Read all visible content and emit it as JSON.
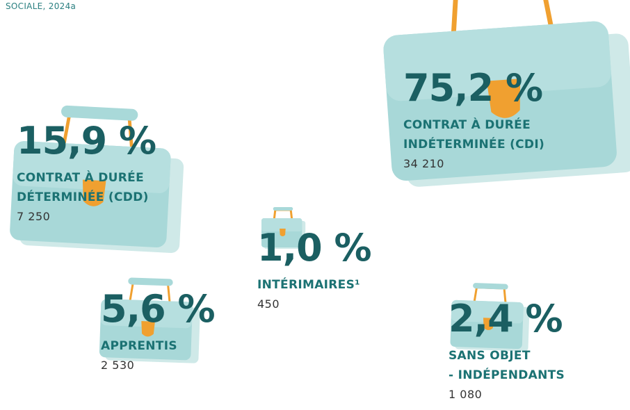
{
  "header": {
    "text": "SOCIALE, 2024a"
  },
  "items": [
    {
      "percent": "75,2 %",
      "label": [
        "CONTRAT À DURÉE",
        "INDÉTERMINÉE (CDI)"
      ],
      "count": "34 210"
    },
    {
      "percent": "15,9 %",
      "label": [
        "CONTRAT À DURÉE",
        "DÉTERMINÉE (CDD)"
      ],
      "count": "7 250"
    },
    {
      "percent": "1,0 %",
      "label": [
        "INTÉRIMAIRES¹"
      ],
      "count": "450"
    },
    {
      "percent": "5,6 %",
      "label": [
        "APPRENTIS"
      ],
      "count": "2 530"
    },
    {
      "percent": "2,4 %",
      "label": [
        "SANS OBJET",
        "- INDÉPENDANTS"
      ],
      "count": "1 080"
    }
  ]
}
